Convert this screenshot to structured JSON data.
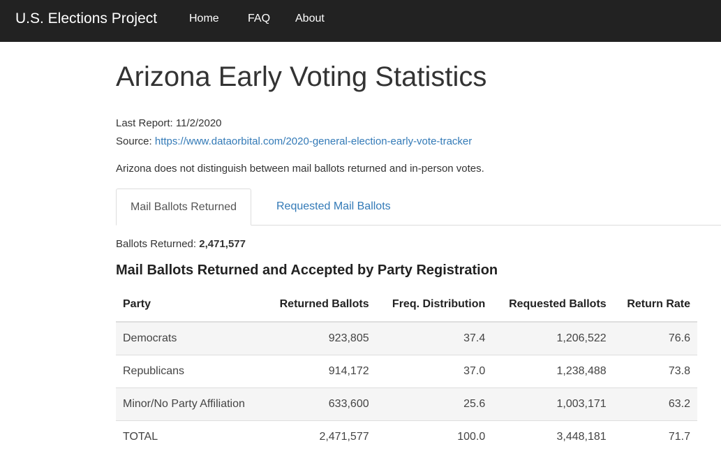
{
  "navbar": {
    "brand": "U.S. Elections Project",
    "links": [
      "Home",
      "FAQ",
      "About"
    ]
  },
  "header": {
    "title": "Arizona Early Voting Statistics"
  },
  "meta": {
    "last_report_label": "Last Report:",
    "last_report": "11/2/2020",
    "source_label": "Source:",
    "source_url": "https://www.dataorbital.com/2020-general-election-early-vote-tracker",
    "note": "Arizona does not distinguish between mail ballots returned and in-person votes."
  },
  "tabs": [
    "Mail Ballots Returned",
    "Requested Mail Ballots"
  ],
  "summary": {
    "label": "Ballots Returned:",
    "value": "2,471,577"
  },
  "table": {
    "title": "Mail Ballots Returned and Accepted by Party Registration",
    "columns": [
      "Party",
      "Returned Ballots",
      "Freq. Distribution",
      "Requested Ballots",
      "Return Rate"
    ],
    "rows": [
      [
        "Democrats",
        "923,805",
        "37.4",
        "1,206,522",
        "76.6"
      ],
      [
        "Republicans",
        "914,172",
        "37.0",
        "1,238,488",
        "73.8"
      ],
      [
        "Minor/No Party Affiliation",
        "633,600",
        "25.6",
        "1,003,171",
        "63.2"
      ],
      [
        "TOTAL",
        "2,471,577",
        "100.0",
        "3,448,181",
        "71.7"
      ]
    ]
  }
}
